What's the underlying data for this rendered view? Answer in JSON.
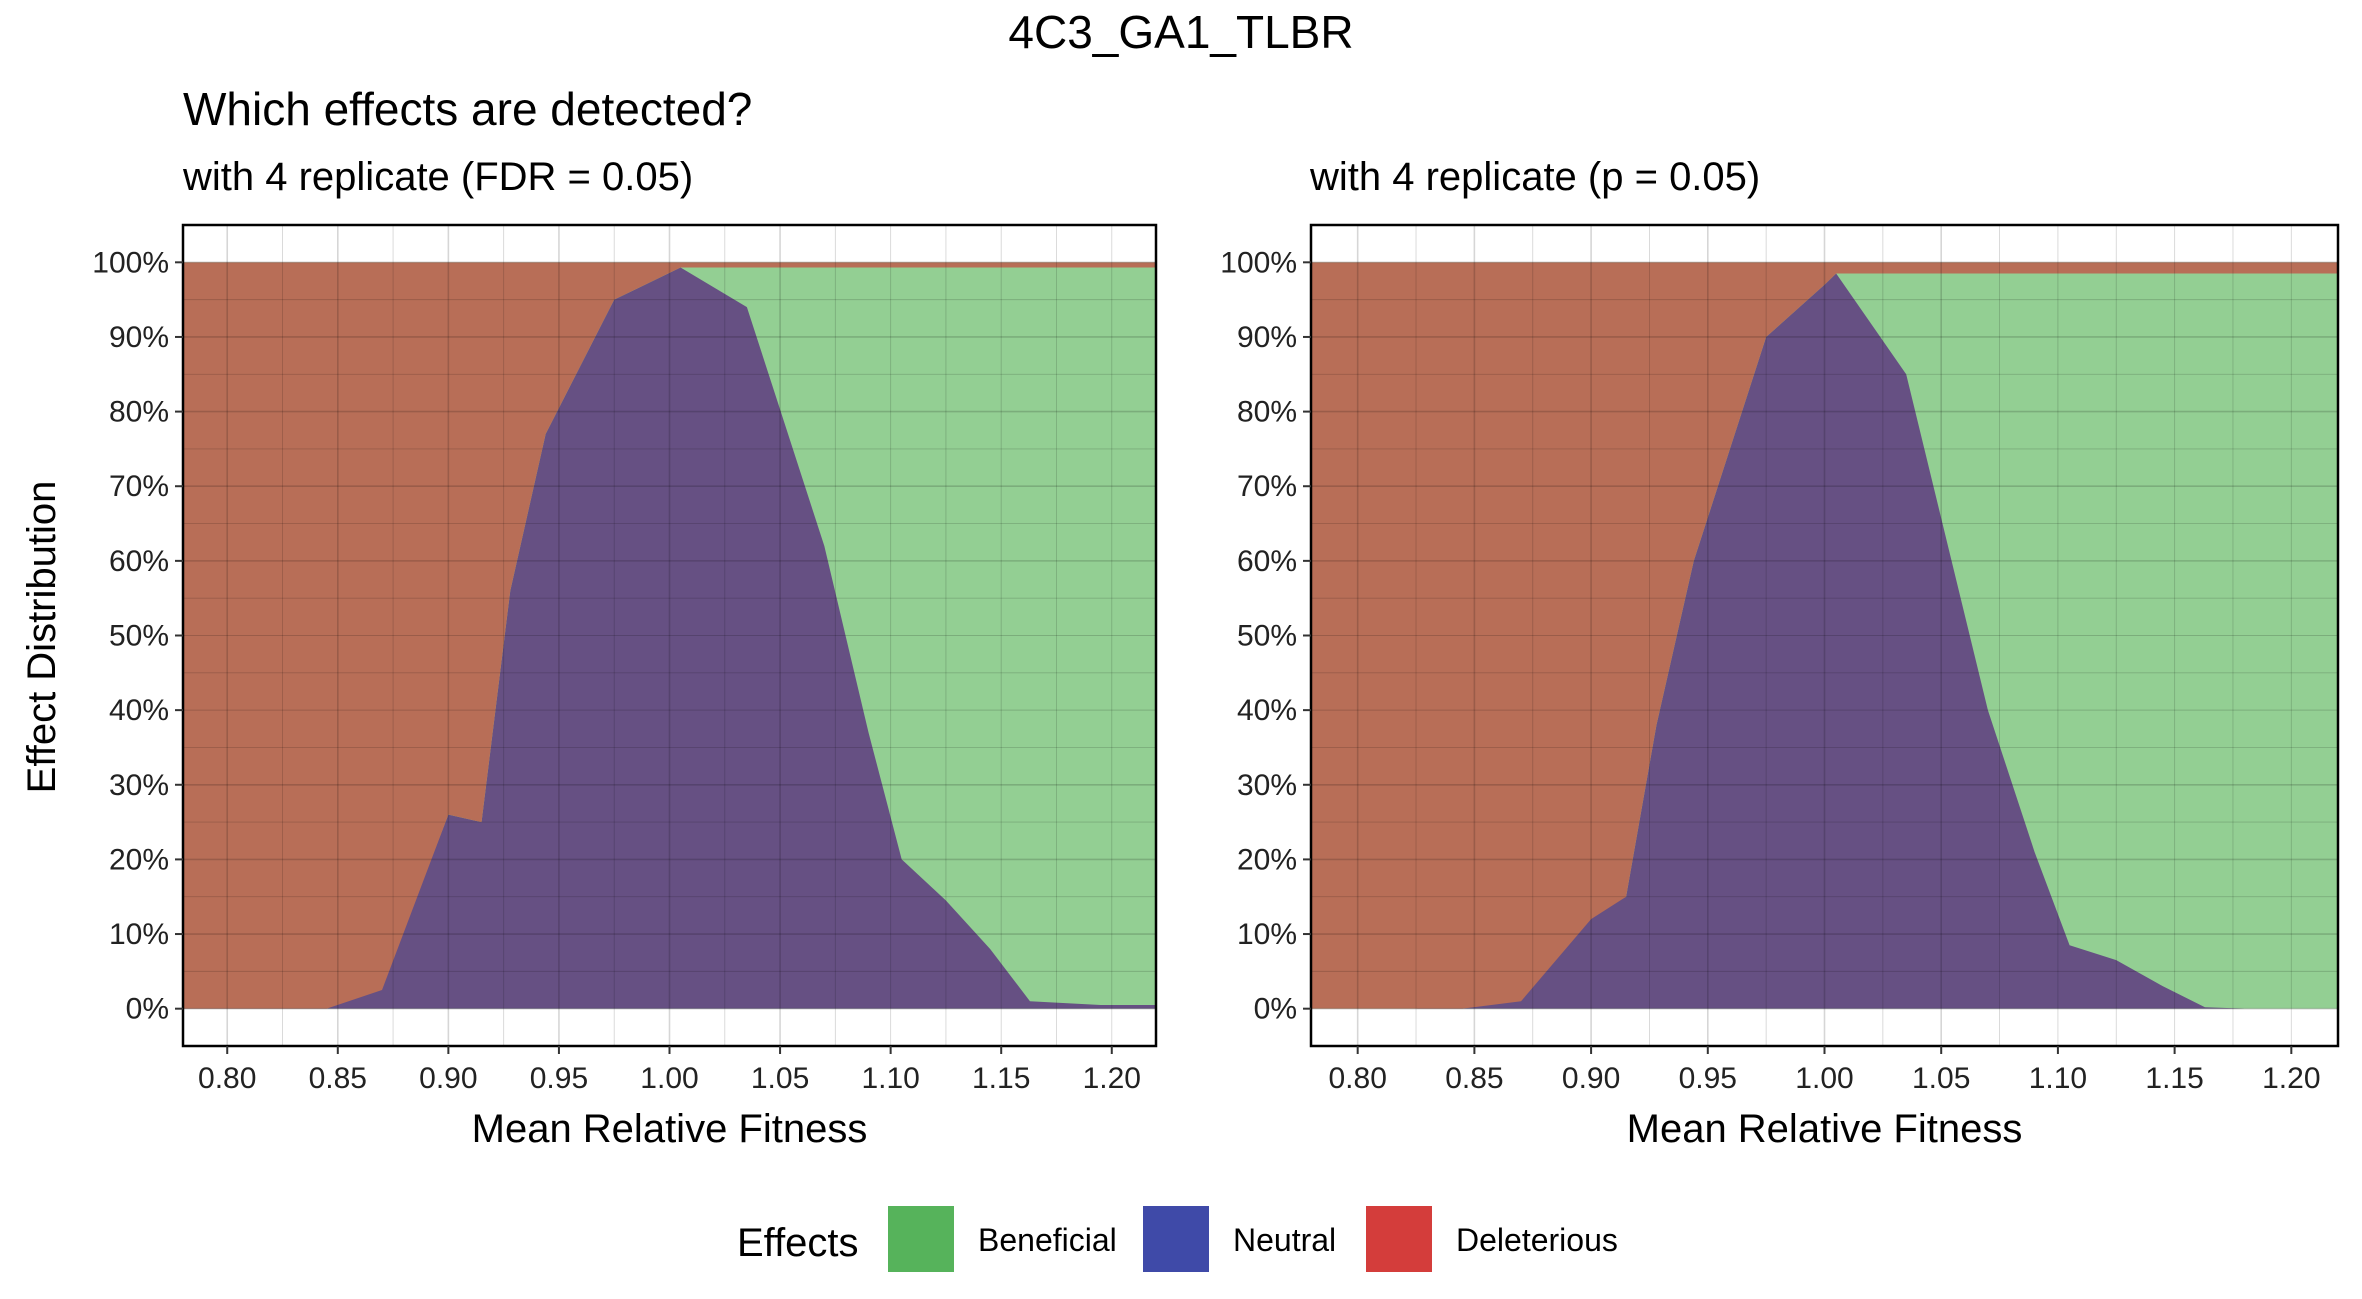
{
  "page": {
    "title": "4C3_GA1_TLBR",
    "heading": "Which effects are detected?",
    "y_axis_label": "Effect Distribution"
  },
  "legend": {
    "title": "Effects",
    "items": [
      {
        "label": "Beneficial",
        "color": "#56b35b"
      },
      {
        "label": "Neutral",
        "color": "#3f4aa8"
      },
      {
        "label": "Deleterious",
        "color": "#d43d3b"
      }
    ]
  },
  "chart_data": [
    {
      "type": "area",
      "subtitle": "with 4 replicate (FDR = 0.05)",
      "xlabel": "Mean Relative Fitness",
      "ylabel": "Effect Distribution",
      "xlim": [
        0.78,
        1.22
      ],
      "ylim": [
        -0.05,
        1.05
      ],
      "x_ticks": [
        0.8,
        0.85,
        0.9,
        0.95,
        1.0,
        1.05,
        1.1,
        1.15,
        1.2
      ],
      "x_tick_labels": [
        "0.80",
        "0.85",
        "0.90",
        "0.95",
        "1.00",
        "1.05",
        "1.10",
        "1.15",
        "1.20"
      ],
      "y_ticks": [
        0,
        0.1,
        0.2,
        0.3,
        0.4,
        0.5,
        0.6,
        0.7,
        0.8,
        0.9,
        1.0
      ],
      "y_tick_labels": [
        "0%",
        "10%",
        "20%",
        "30%",
        "40%",
        "50%",
        "60%",
        "70%",
        "80%",
        "90%",
        "100%"
      ],
      "grid": true,
      "stacking": "Beneficial on top, Neutral in middle, Deleterious at bottom",
      "x_range": [
        0.78,
        1.22
      ],
      "deleterious_upper": {
        "x": [
          0.78,
          0.8,
          0.825,
          0.845,
          0.87,
          0.9,
          0.915,
          0.928,
          0.944,
          0.975,
          1.005,
          1.035,
          1.07,
          1.09,
          1.105,
          1.125,
          1.145,
          1.163,
          1.195,
          1.22
        ],
        "y": [
          0,
          0,
          0,
          0,
          0.025,
          0.26,
          0.25,
          0.56,
          0.77,
          0.95,
          0.993,
          0.993,
          0.993,
          0.993,
          0.993,
          0.993,
          0.993,
          0.993,
          0.993,
          0.993
        ]
      },
      "neutral_upper": {
        "x": [
          0.78,
          0.8,
          0.825,
          0.845,
          0.87,
          0.9,
          0.915,
          0.928,
          0.944,
          0.975,
          1.005,
          1.035,
          1.07,
          1.09,
          1.105,
          1.125,
          1.145,
          1.163,
          1.195,
          1.22
        ],
        "y": [
          0.005,
          0.005,
          0.005,
          0.005,
          0.03,
          0.26,
          0.25,
          0.56,
          0.77,
          0.95,
          0.993,
          0.94,
          0.62,
          0.37,
          0.2,
          0.145,
          0.08,
          0.01,
          0.005,
          0.005
        ]
      }
    },
    {
      "type": "area",
      "subtitle": "with 4 replicate (p = 0.05)",
      "xlabel": "Mean Relative Fitness",
      "ylabel": "",
      "xlim": [
        0.78,
        1.22
      ],
      "ylim": [
        -0.05,
        1.05
      ],
      "x_ticks": [
        0.8,
        0.85,
        0.9,
        0.95,
        1.0,
        1.05,
        1.1,
        1.15,
        1.2
      ],
      "x_tick_labels": [
        "0.80",
        "0.85",
        "0.90",
        "0.95",
        "1.00",
        "1.05",
        "1.10",
        "1.15",
        "1.20"
      ],
      "y_ticks": [
        0,
        0.1,
        0.2,
        0.3,
        0.4,
        0.5,
        0.6,
        0.7,
        0.8,
        0.9,
        1.0
      ],
      "y_tick_labels": [
        "0%",
        "10%",
        "20%",
        "30%",
        "40%",
        "50%",
        "60%",
        "70%",
        "80%",
        "90%",
        "100%"
      ],
      "grid": true,
      "stacking": "Beneficial on top, Neutral in middle, Deleterious at bottom",
      "x_range": [
        0.78,
        1.22
      ],
      "deleterious_upper": {
        "x": [
          0.78,
          0.8,
          0.825,
          0.845,
          0.87,
          0.9,
          0.915,
          0.928,
          0.944,
          0.975,
          1.0,
          1.005,
          1.035,
          1.07,
          1.09,
          1.105,
          1.125,
          1.145,
          1.163,
          1.18,
          1.22
        ],
        "y": [
          0,
          0,
          0,
          0,
          0.01,
          0.12,
          0.15,
          0.38,
          0.6,
          0.9,
          0.97,
          0.985,
          0.985,
          0.985,
          0.985,
          0.985,
          0.985,
          0.985,
          0.985,
          0.985,
          0.985
        ]
      },
      "neutral_upper": {
        "x": [
          0.78,
          0.8,
          0.825,
          0.845,
          0.87,
          0.9,
          0.915,
          0.928,
          0.944,
          0.975,
          1.0,
          1.005,
          1.035,
          1.07,
          1.09,
          1.105,
          1.125,
          1.145,
          1.163,
          1.18,
          1.22
        ],
        "y": [
          0,
          0,
          0,
          0.005,
          0.015,
          0.125,
          0.15,
          0.38,
          0.6,
          0.9,
          0.97,
          0.985,
          0.85,
          0.4,
          0.21,
          0.085,
          0.065,
          0.03,
          0.002,
          0,
          0
        ]
      }
    }
  ]
}
